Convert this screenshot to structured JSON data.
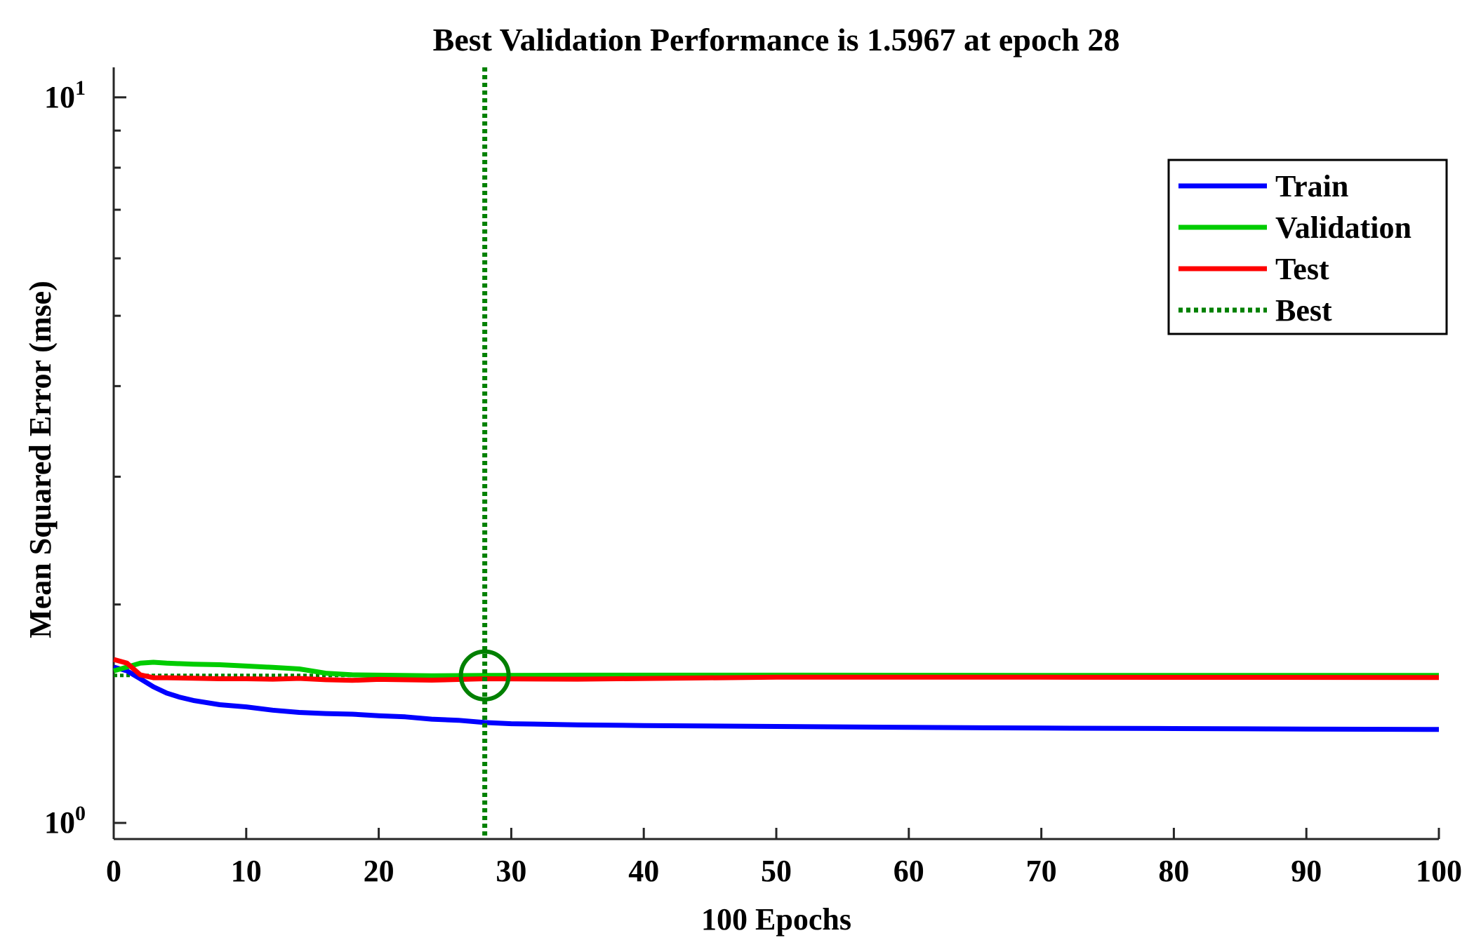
{
  "chart_data": {
    "type": "line",
    "title": "Best Validation Performance is 1.5967 at epoch 28",
    "xlabel": "100 Epochs",
    "ylabel": "Mean Squared Error  (mse)",
    "xlim": [
      0,
      100
    ],
    "ylim": [
      0.95,
      11
    ],
    "yscale": "log",
    "xticks": [
      0,
      10,
      20,
      30,
      40,
      50,
      60,
      70,
      80,
      90,
      100
    ],
    "yticks_major": [
      {
        "value": 1,
        "base": "10",
        "exp": "0"
      },
      {
        "value": 10,
        "base": "10",
        "exp": "1"
      }
    ],
    "yticks_minor": [
      2,
      3,
      4,
      5,
      6,
      7,
      8,
      9
    ],
    "legend_position": "top-right",
    "series": [
      {
        "name": "Train",
        "color": "#0000ff",
        "style": "solid",
        "x": [
          0,
          1,
          2,
          3,
          4,
          5,
          6,
          8,
          10,
          12,
          14,
          16,
          18,
          20,
          22,
          24,
          26,
          28,
          30,
          35,
          40,
          50,
          60,
          70,
          80,
          90,
          100
        ],
        "y": [
          1.64,
          1.62,
          1.58,
          1.54,
          1.51,
          1.49,
          1.475,
          1.455,
          1.445,
          1.43,
          1.42,
          1.415,
          1.412,
          1.405,
          1.4,
          1.39,
          1.385,
          1.375,
          1.37,
          1.365,
          1.362,
          1.358,
          1.354,
          1.351,
          1.349,
          1.347,
          1.345
        ]
      },
      {
        "name": "Validation",
        "color": "#00cc00",
        "style": "solid",
        "x": [
          0,
          1,
          2,
          3,
          4,
          6,
          8,
          10,
          12,
          14,
          16,
          18,
          20,
          24,
          28,
          35,
          50,
          70,
          100
        ],
        "y": [
          1.62,
          1.64,
          1.66,
          1.665,
          1.66,
          1.655,
          1.652,
          1.645,
          1.638,
          1.63,
          1.608,
          1.6,
          1.598,
          1.595,
          1.5967,
          1.598,
          1.598,
          1.597,
          1.597
        ]
      },
      {
        "name": "Test",
        "color": "#ff0000",
        "style": "solid",
        "x": [
          0,
          1,
          2,
          3,
          4,
          6,
          8,
          10,
          12,
          14,
          16,
          18,
          20,
          24,
          28,
          35,
          50,
          70,
          100
        ],
        "y": [
          1.68,
          1.66,
          1.6,
          1.585,
          1.585,
          1.583,
          1.58,
          1.58,
          1.578,
          1.582,
          1.575,
          1.572,
          1.577,
          1.573,
          1.58,
          1.578,
          1.588,
          1.588,
          1.586
        ]
      },
      {
        "name": "Best",
        "color": "#008000",
        "style": "dotted",
        "best_epoch": 28,
        "best_value": 1.5967
      }
    ],
    "goal_line": {
      "y": 1.5967,
      "color": "#008000",
      "style": "dotted"
    },
    "best_marker": {
      "x": 28,
      "y": 1.5967,
      "shape": "circle",
      "color": "#008000"
    }
  }
}
